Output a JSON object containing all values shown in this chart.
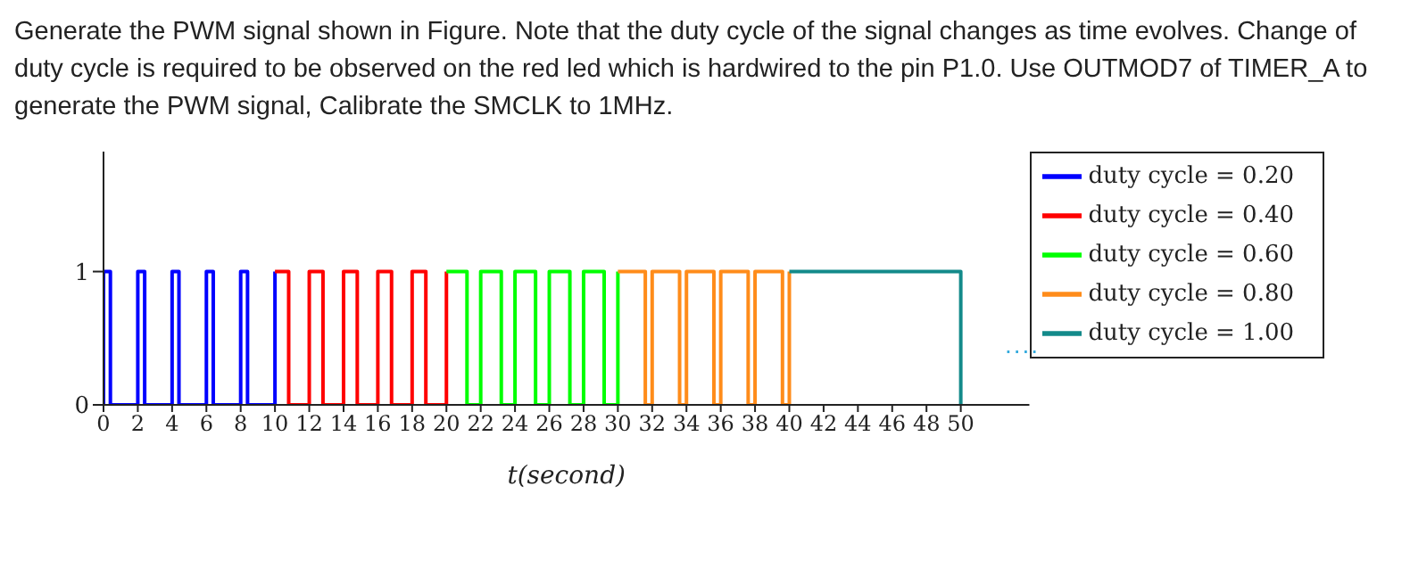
{
  "chart_data": {
    "type": "step",
    "title": "Generate the PWM signal shown in Figure. Note that the duty cycle of the signal changes as time evolves. Change of duty cycle is required to be observed on the red led which is hardwired to the pin P1.0. Use OUTMOD7 of TIMER_A to generate the PWM signal, Calibrate the SMCLK to 1MHz.",
    "xlabel": "t(second)",
    "series": [
      {
        "name": "duty cycle = 0.20",
        "color": "#0000ff",
        "x": [
          0,
          0,
          0.4,
          2,
          2.4,
          4,
          4.4,
          6,
          6.4,
          8,
          8.4,
          10
        ],
        "values": [
          0,
          1,
          0,
          1,
          0,
          1,
          0,
          1,
          0,
          1,
          0,
          1
        ]
      },
      {
        "name": "duty cycle = 0.40",
        "color": "#ff0000",
        "x": [
          10,
          10.8,
          12,
          12.8,
          14,
          14.8,
          16,
          16.8,
          18,
          18.8,
          20
        ],
        "values": [
          1,
          0,
          1,
          0,
          1,
          0,
          1,
          0,
          1,
          0,
          1
        ]
      },
      {
        "name": "duty cycle = 0.60",
        "color": "#00ff00",
        "x": [
          20,
          21.2,
          22,
          23.2,
          24,
          25.2,
          26,
          27.2,
          28,
          29.2,
          30
        ],
        "values": [
          1,
          0,
          1,
          0,
          1,
          0,
          1,
          0,
          1,
          0,
          1
        ]
      },
      {
        "name": "duty cycle = 0.80",
        "color": "#ff8c1a",
        "x": [
          30,
          31.6,
          32,
          33.6,
          34,
          35.6,
          36,
          37.6,
          38,
          39.6,
          40
        ],
        "values": [
          1,
          0,
          1,
          0,
          1,
          0,
          1,
          0,
          1,
          0,
          1
        ]
      },
      {
        "name": "duty cycle = 1.00",
        "color": "#138a8a",
        "x": [
          40,
          50,
          50
        ],
        "values": [
          1,
          1,
          0
        ]
      }
    ],
    "annotations": [
      "...."
    ],
    "xlim": [
      0,
      54
    ],
    "xticks": [
      0,
      2,
      4,
      6,
      8,
      10,
      12,
      14,
      16,
      18,
      20,
      22,
      24,
      26,
      28,
      30,
      32,
      34,
      36,
      38,
      40,
      42,
      44,
      46,
      48,
      50
    ],
    "ylim": [
      0,
      1.9
    ],
    "yticks": [
      0,
      1
    ],
    "grid": false,
    "legend": "right",
    "marker": "none",
    "line_style": "solid"
  }
}
